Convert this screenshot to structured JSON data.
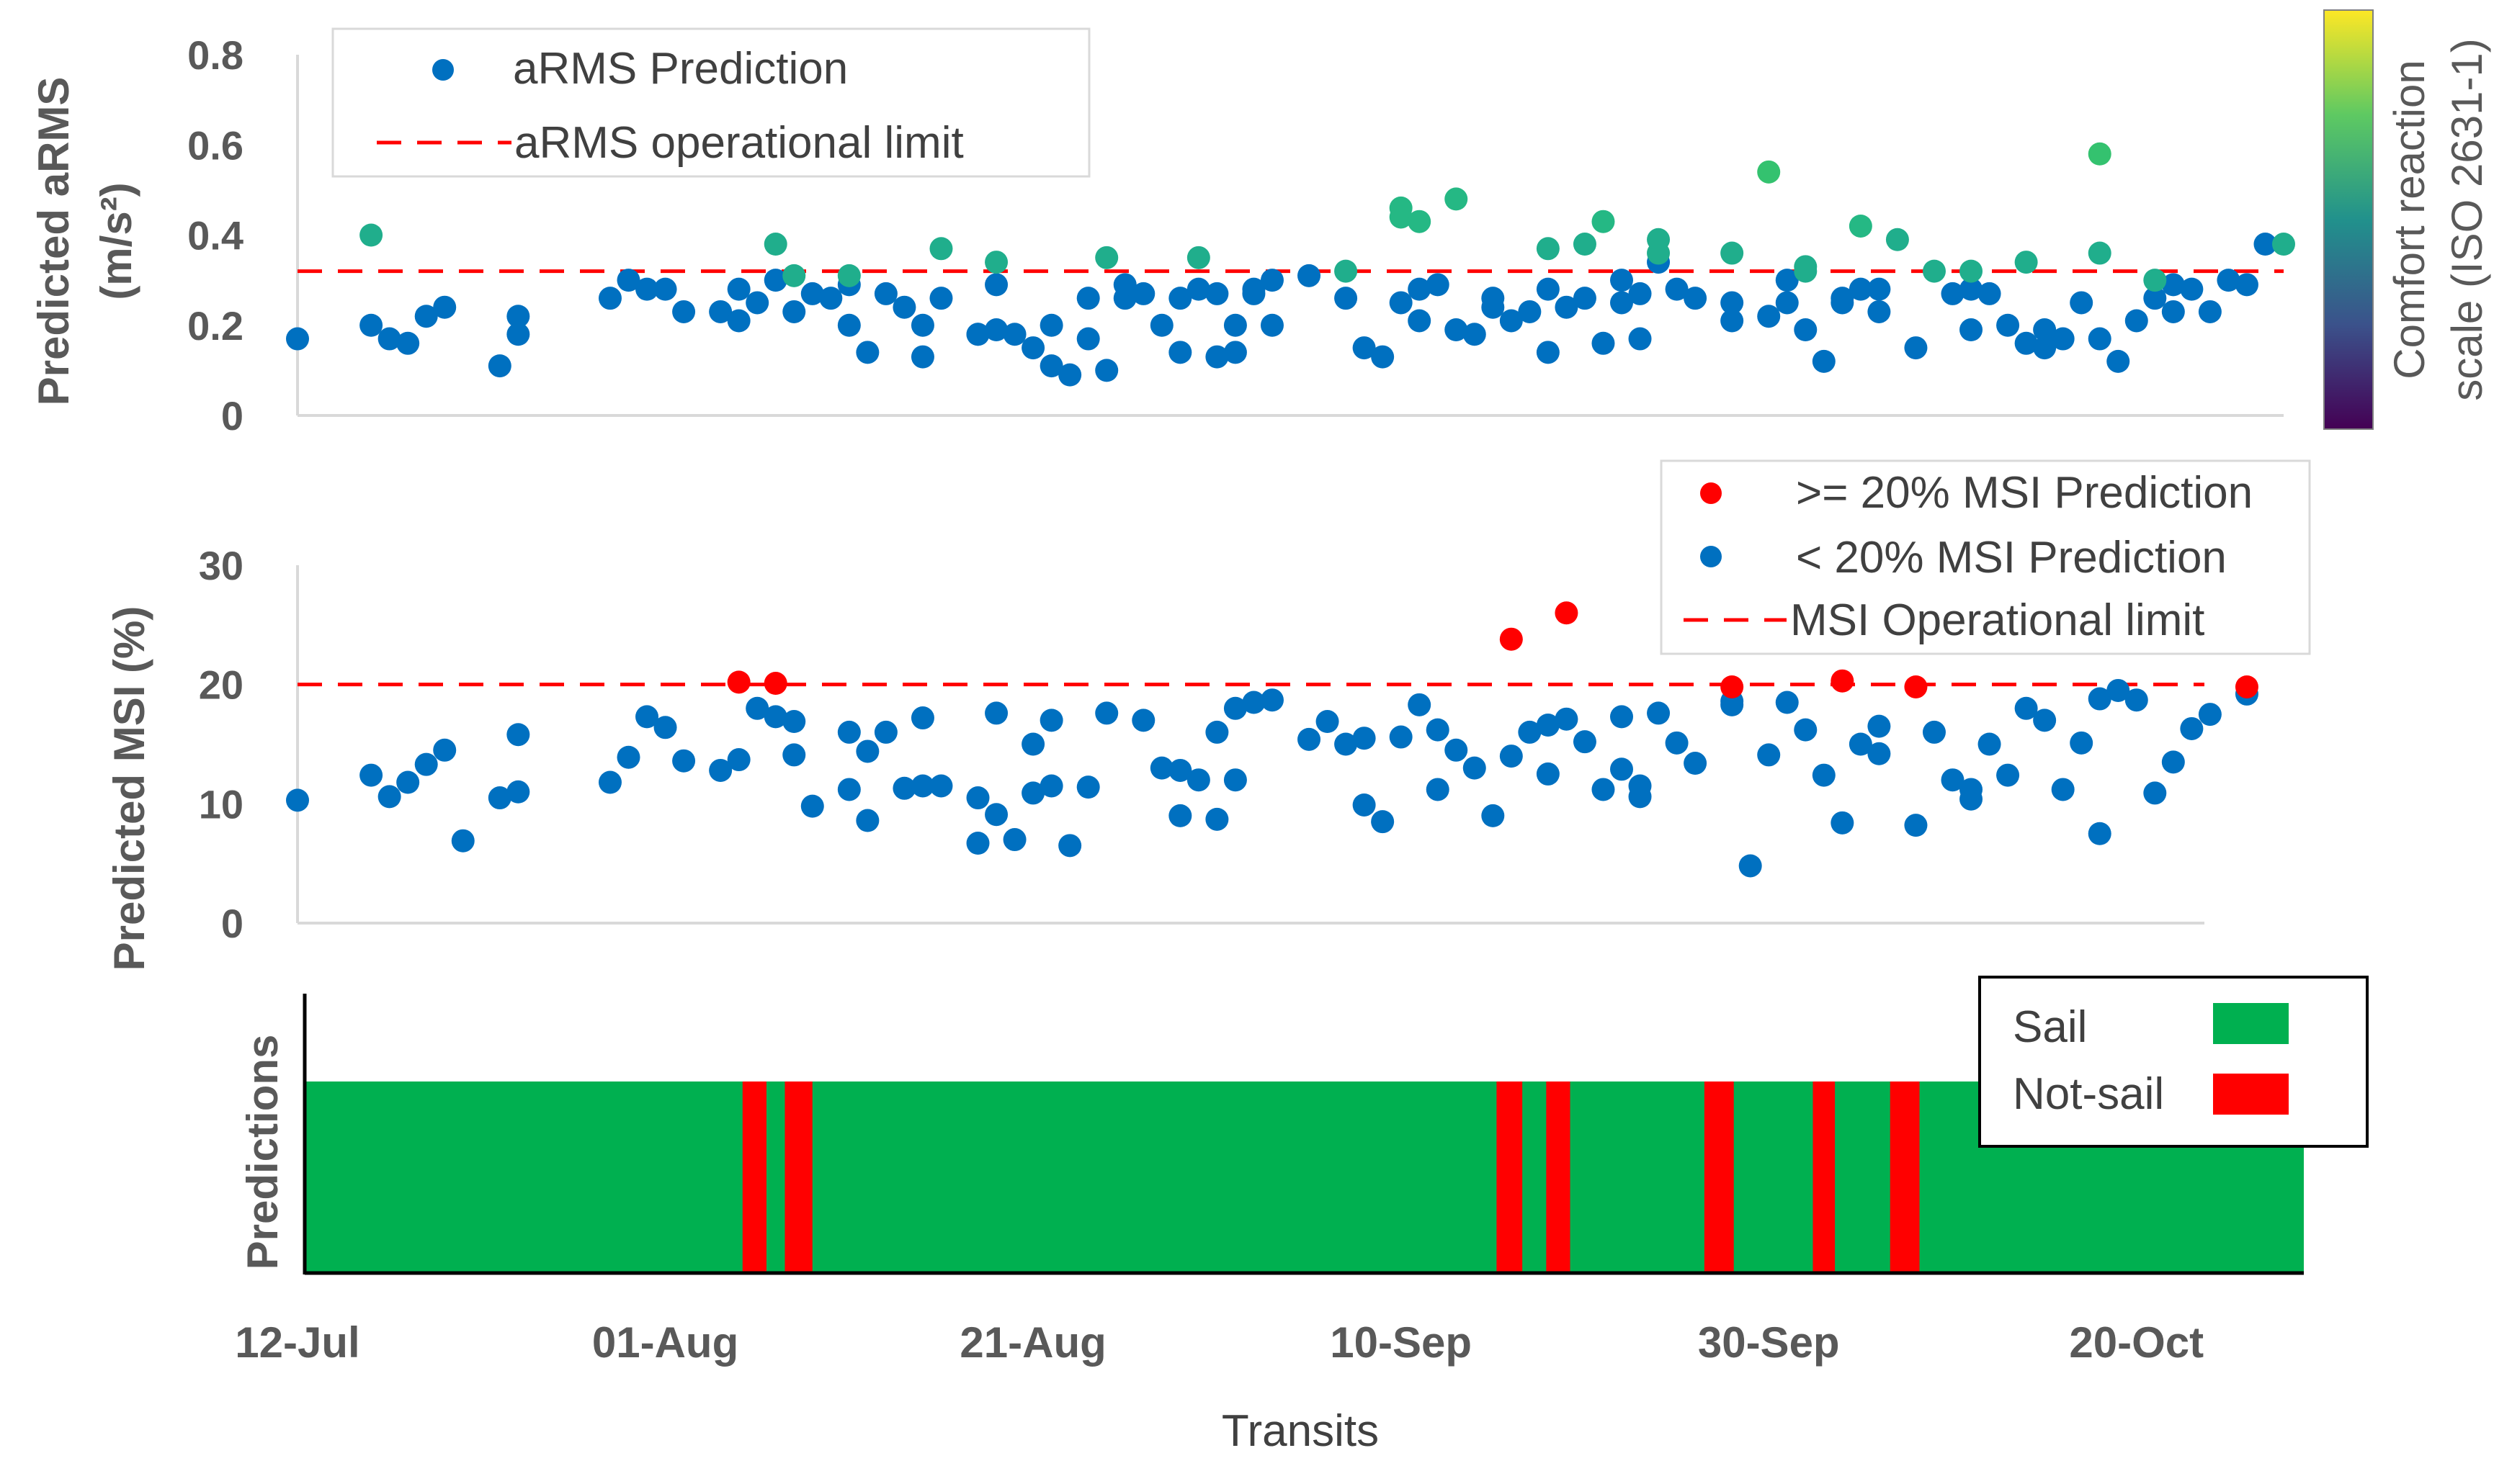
{
  "colors": {
    "point_blue": "#0070C0",
    "point_red": "#FF0000",
    "limit_red": "#FF0000",
    "sail_green": "#00B050",
    "notsail_red": "#FF0000",
    "colorbar": [
      "#440154",
      "#3b528b",
      "#21918c",
      "#5ec962",
      "#fde725"
    ]
  },
  "chart_data": [
    {
      "id": "arms",
      "type": "scatter",
      "ylabel_line1": "Predicted aRMS",
      "ylabel_line2": "(m/s²)",
      "ylim": [
        0,
        0.8
      ],
      "yticks": [
        "0",
        "0.2",
        "0.4",
        "0.6",
        "0.8"
      ],
      "ytick_values": [
        0,
        0.2,
        0.4,
        0.6,
        0.8
      ],
      "x_domain": [
        0,
        108
      ],
      "limit": 0.32,
      "legend": [
        "aRMS Prediction",
        "aRMS operational limit"
      ],
      "colorbar_label_line1": "Comfort reaction",
      "colorbar_label_line2": "scale (ISO 2631-1)",
      "x": [
        0,
        4,
        5,
        6,
        7,
        8,
        11,
        12,
        12,
        17,
        18,
        19,
        20,
        21,
        23,
        24,
        24,
        25,
        26,
        27,
        28,
        29,
        30,
        30,
        31,
        32,
        33,
        34,
        34,
        35,
        37,
        37,
        38,
        38,
        39,
        40,
        41,
        41,
        42,
        43,
        43,
        44,
        45,
        45,
        46,
        47,
        48,
        48,
        49,
        50,
        50,
        51,
        51,
        52,
        52,
        53,
        53,
        55,
        57,
        58,
        59,
        60,
        61,
        61,
        62,
        63,
        64,
        65,
        65,
        66,
        67,
        68,
        68,
        69,
        70,
        71,
        72,
        72,
        73,
        73,
        74,
        75,
        76,
        78,
        78,
        80,
        81,
        81,
        82,
        83,
        84,
        84,
        85,
        86,
        86,
        88,
        90,
        91,
        91,
        92,
        93,
        94,
        95,
        95,
        96,
        97,
        98,
        99,
        100,
        101,
        102,
        102,
        103,
        104,
        105,
        106,
        107
      ],
      "y": [
        0.17,
        0.2,
        0.17,
        0.16,
        0.22,
        0.24,
        0.11,
        0.18,
        0.22,
        0.26,
        0.3,
        0.28,
        0.28,
        0.23,
        0.23,
        0.28,
        0.21,
        0.25,
        0.3,
        0.23,
        0.27,
        0.26,
        0.2,
        0.29,
        0.14,
        0.27,
        0.24,
        0.2,
        0.13,
        0.26,
        0.18,
        0.18,
        0.29,
        0.19,
        0.18,
        0.15,
        0.2,
        0.11,
        0.09,
        0.26,
        0.17,
        0.1,
        0.26,
        0.29,
        0.27,
        0.2,
        0.26,
        0.14,
        0.28,
        0.13,
        0.27,
        0.2,
        0.14,
        0.28,
        0.27,
        0.3,
        0.2,
        0.31,
        0.26,
        0.15,
        0.13,
        0.25,
        0.28,
        0.21,
        0.29,
        0.19,
        0.18,
        0.24,
        0.26,
        0.21,
        0.23,
        0.14,
        0.28,
        0.24,
        0.26,
        0.16,
        0.25,
        0.3,
        0.27,
        0.17,
        0.34,
        0.28,
        0.26,
        0.25,
        0.21,
        0.22,
        0.3,
        0.25,
        0.19,
        0.12,
        0.26,
        0.25,
        0.28,
        0.23,
        0.28,
        0.15,
        0.27,
        0.19,
        0.28,
        0.27,
        0.2,
        0.16,
        0.19,
        0.15,
        0.17,
        0.25,
        0.17,
        0.12,
        0.21,
        0.26,
        0.23,
        0.29,
        0.28,
        0.23,
        0.3,
        0.29,
        0.38
      ],
      "high_x": [
        4,
        26,
        27,
        30,
        35,
        38,
        44,
        49,
        57,
        60,
        60,
        61,
        63,
        68,
        70,
        71,
        74,
        74,
        78,
        80,
        82,
        82,
        85,
        87,
        89,
        91,
        94,
        98,
        98,
        101,
        108
      ],
      "high_y": [
        0.4,
        0.38,
        0.31,
        0.31,
        0.37,
        0.34,
        0.35,
        0.35,
        0.32,
        0.46,
        0.44,
        0.43,
        0.48,
        0.37,
        0.38,
        0.43,
        0.36,
        0.39,
        0.36,
        0.54,
        0.33,
        0.32,
        0.42,
        0.39,
        0.32,
        0.32,
        0.34,
        0.58,
        0.36,
        0.3,
        0.38
      ]
    },
    {
      "id": "msi",
      "type": "scatter",
      "ylabel": "Predicted MSI (%)",
      "ylim": [
        0,
        30
      ],
      "yticks": [
        "0",
        "10",
        "20",
        "30"
      ],
      "ytick_values": [
        0,
        10,
        20,
        30
      ],
      "x_domain": [
        0,
        108
      ],
      "limit": 20,
      "legend": [
        ">= 20% MSI Prediction",
        "< 20% MSI Prediction",
        "MSI Operational limit"
      ],
      "x": [
        0,
        4,
        5,
        6,
        7,
        8,
        9,
        11,
        12,
        12,
        17,
        18,
        19,
        20,
        21,
        23,
        24,
        25,
        26,
        27,
        27,
        28,
        30,
        30,
        31,
        31,
        32,
        33,
        34,
        34,
        35,
        37,
        37,
        38,
        38,
        39,
        40,
        40,
        41,
        41,
        42,
        43,
        44,
        46,
        47,
        48,
        48,
        49,
        50,
        50,
        51,
        51,
        52,
        53,
        55,
        56,
        57,
        58,
        58,
        59,
        60,
        61,
        62,
        62,
        63,
        64,
        65,
        66,
        67,
        68,
        68,
        69,
        70,
        71,
        72,
        72,
        73,
        73,
        74,
        75,
        76,
        78,
        78,
        79,
        80,
        81,
        82,
        83,
        84,
        85,
        86,
        86,
        88,
        89,
        90,
        91,
        91,
        92,
        93,
        94,
        95,
        96,
        97,
        98,
        98,
        99,
        100,
        101,
        102,
        103,
        104,
        106
      ],
      "y": [
        10.3,
        12.4,
        10.6,
        11.8,
        13.3,
        14.5,
        6.9,
        10.5,
        11,
        15.8,
        11.8,
        13.9,
        17.3,
        16.4,
        13.6,
        12.8,
        13.7,
        18,
        17.3,
        14.1,
        16.9,
        9.8,
        16,
        11.2,
        14.4,
        8.6,
        16,
        11.3,
        11.5,
        17.2,
        11.5,
        10.5,
        6.7,
        17.6,
        9.1,
        7,
        15,
        10.9,
        17,
        11.5,
        6.5,
        11.4,
        17.6,
        17,
        13,
        9,
        12.8,
        12,
        16,
        8.7,
        12,
        18,
        18.5,
        18.7,
        15.4,
        16.9,
        15,
        9.9,
        15.5,
        8.5,
        15.6,
        18.3,
        11.2,
        16.2,
        14.5,
        13,
        9,
        14,
        16,
        12.5,
        16.6,
        17.1,
        15.2,
        11.2,
        12.9,
        17.3,
        11.5,
        10.6,
        17.6,
        15.1,
        13.4,
        18.3,
        18.6,
        4.8,
        14.1,
        18.5,
        16.2,
        12.4,
        8.4,
        15,
        16.5,
        14.2,
        8.2,
        16,
        12,
        11.2,
        10.4,
        15,
        12.4,
        18,
        17,
        11.2,
        15.1,
        7.5,
        18.8,
        19.5,
        18.7,
        10.9,
        13.5,
        16.3,
        17.5,
        19.2
      ],
      "high_x": [
        24,
        26,
        66,
        69,
        78,
        84,
        88,
        106
      ],
      "high_y": [
        20.2,
        20.1,
        23.8,
        26,
        19.8,
        20.3,
        19.8,
        19.8
      ]
    },
    {
      "id": "predictions",
      "type": "bar",
      "ylabel": "Predictions",
      "legend": [
        "Sail",
        "Not-sail"
      ],
      "xlabel": "Transits",
      "x_ticks": [
        "12-Jul",
        "01-Aug",
        "21-Aug",
        "10-Sep",
        "30-Sep",
        "20-Oct"
      ],
      "x_tick_days": [
        0,
        20,
        40,
        60,
        80,
        100
      ],
      "x_domain": [
        0,
        108
      ],
      "notsail_intervals": [
        [
          24.2,
          25.5
        ],
        [
          26.5,
          28
        ],
        [
          65.2,
          66.6
        ],
        [
          67.9,
          69.2
        ],
        [
          76.5,
          78.1
        ],
        [
          82.4,
          83.6
        ],
        [
          86.6,
          88.2
        ]
      ]
    }
  ]
}
